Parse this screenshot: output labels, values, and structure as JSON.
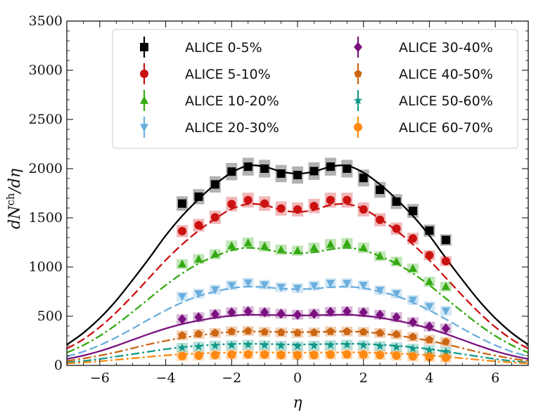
{
  "chart_data": {
    "type": "scatter",
    "xlabel": "η",
    "ylabel": "dN^ch/dη",
    "xlim": [
      -7,
      7
    ],
    "ylim": [
      0,
      3500
    ],
    "xticks": [
      -6,
      -4,
      -2,
      0,
      2,
      4,
      6
    ],
    "yticks": [
      0,
      500,
      1000,
      1500,
      2000,
      2500,
      3000,
      3500
    ],
    "xtick_labels": [
      "−6",
      "−4",
      "−2",
      "0",
      "2",
      "4",
      "6"
    ],
    "ytick_labels": [
      "0",
      "500",
      "1000",
      "1500",
      "2000",
      "2500",
      "3000",
      "3500"
    ],
    "grid": false,
    "legend_position": "top-center, 2 columns",
    "x": [
      -3.5,
      -3.0,
      -2.5,
      -2.0,
      -1.5,
      -1.0,
      -0.5,
      0.0,
      0.5,
      1.0,
      1.5,
      2.0,
      2.5,
      3.0,
      3.5,
      4.0,
      4.5
    ],
    "curve_x": [
      -7,
      -6.5,
      -6,
      -5.5,
      -5,
      -4.5,
      -4,
      -3.5,
      -3,
      -2.5,
      -2,
      -1.5,
      -1,
      -0.5,
      0,
      0.5,
      1,
      1.5,
      2,
      2.5,
      3,
      3.5,
      4,
      4.5,
      5,
      5.5,
      6,
      6.5,
      7
    ],
    "series": [
      {
        "name": "ALICE 0-5%",
        "color": "#000000",
        "marker": "square",
        "line_style": "solid",
        "data_x": [
          -3.5,
          -3.0,
          -2.5,
          -2.0,
          -1.5,
          -1.0,
          -0.5,
          0.0,
          0.5,
          1.0,
          1.5,
          2.0,
          2.5,
          3.0,
          3.5,
          4.0,
          4.5
        ],
        "values": [
          1645,
          1715,
          1840,
          1970,
          2020,
          2000,
          1950,
          1935,
          1975,
          2020,
          2000,
          1905,
          1785,
          1665,
          1570,
          1370,
          1275
        ],
        "curve": [
          210,
          330,
          480,
          660,
          870,
          1090,
          1320,
          1520,
          1690,
          1840,
          1960,
          2030,
          2020,
          1970,
          1950,
          1970,
          2020,
          2030,
          1960,
          1840,
          1690,
          1520,
          1320,
          1090,
          870,
          660,
          480,
          330,
          210
        ]
      },
      {
        "name": "ALICE 5-10%",
        "color": "#cc1111",
        "marker": "circle",
        "line_style": "dashed",
        "data_x": [
          -3.5,
          -3.0,
          -2.5,
          -2.0,
          -1.5,
          -1.0,
          -0.5,
          0.0,
          0.5,
          1.0,
          1.5,
          2.0,
          2.5,
          3.0,
          3.5,
          4.0,
          4.5
        ],
        "values": [
          1365,
          1425,
          1505,
          1640,
          1680,
          1645,
          1595,
          1585,
          1620,
          1680,
          1680,
          1585,
          1480,
          1390,
          1290,
          1120,
          1060
        ],
        "curve": [
          170,
          265,
          390,
          540,
          710,
          890,
          1070,
          1230,
          1370,
          1490,
          1590,
          1640,
          1630,
          1580,
          1560,
          1580,
          1630,
          1640,
          1590,
          1490,
          1370,
          1230,
          1070,
          890,
          710,
          540,
          390,
          265,
          170
        ]
      },
      {
        "name": "ALICE 10-20%",
        "color": "#33aa11",
        "marker": "triangle-up",
        "line_style": "dashdot",
        "data_x": [
          -3.5,
          -3.0,
          -2.5,
          -2.0,
          -1.5,
          -1.0,
          -0.5,
          0.0,
          0.5,
          1.0,
          1.5,
          2.0,
          2.5,
          3.0,
          3.5,
          4.0,
          4.5
        ],
        "values": [
          1030,
          1080,
          1130,
          1215,
          1245,
          1210,
          1175,
          1165,
          1195,
          1230,
          1240,
          1195,
          1110,
          1055,
          985,
          850,
          800
        ],
        "curve": [
          130,
          205,
          300,
          415,
          545,
          680,
          815,
          935,
          1035,
          1110,
          1170,
          1195,
          1180,
          1150,
          1140,
          1150,
          1180,
          1195,
          1170,
          1110,
          1035,
          935,
          815,
          680,
          545,
          415,
          300,
          205,
          130
        ]
      },
      {
        "name": "ALICE 20-30%",
        "color": "#6aaedd",
        "marker": "triangle-down",
        "line_style": "dashed",
        "data_x": [
          -3.5,
          -3.0,
          -2.5,
          -2.0,
          -1.5,
          -1.0,
          -0.5,
          0.0,
          0.5,
          1.0,
          1.5,
          2.0,
          2.5,
          3.0,
          3.5,
          4.0,
          4.5
        ],
        "values": [
          700,
          730,
          770,
          815,
          840,
          820,
          795,
          785,
          810,
          835,
          835,
          815,
          765,
          730,
          665,
          600,
          555
        ],
        "curve": [
          90,
          140,
          205,
          285,
          375,
          470,
          560,
          640,
          705,
          750,
          785,
          800,
          795,
          780,
          775,
          780,
          795,
          800,
          785,
          750,
          705,
          640,
          560,
          470,
          375,
          285,
          205,
          140,
          90
        ]
      },
      {
        "name": "ALICE 30-40%",
        "color": "#7a117e",
        "marker": "diamond",
        "line_style": "solid",
        "data_x": [
          -3.5,
          -3.0,
          -2.5,
          -2.0,
          -1.5,
          -1.0,
          -0.5,
          0.0,
          0.5,
          1.0,
          1.5,
          2.0,
          2.5,
          3.0,
          3.5,
          4.0,
          4.5
        ],
        "values": [
          470,
          490,
          520,
          540,
          550,
          540,
          525,
          515,
          525,
          545,
          550,
          540,
          515,
          490,
          440,
          395,
          375
        ],
        "curve": [
          65,
          100,
          145,
          200,
          260,
          320,
          375,
          420,
          455,
          485,
          505,
          515,
          513,
          510,
          508,
          510,
          513,
          515,
          505,
          485,
          455,
          420,
          375,
          320,
          260,
          200,
          145,
          100,
          65
        ]
      },
      {
        "name": "ALICE 40-50%",
        "color": "#cc6611",
        "marker": "pentagon",
        "line_style": "dashdot",
        "data_x": [
          -3.5,
          -3.0,
          -2.5,
          -2.0,
          -1.5,
          -1.0,
          -0.5,
          0.0,
          0.5,
          1.0,
          1.5,
          2.0,
          2.5,
          3.0,
          3.5,
          4.0,
          4.5
        ],
        "values": [
          305,
          320,
          330,
          345,
          350,
          340,
          335,
          330,
          335,
          345,
          345,
          340,
          330,
          315,
          290,
          260,
          240
        ],
        "curve": [
          45,
          70,
          100,
          135,
          175,
          215,
          250,
          280,
          305,
          325,
          340,
          345,
          343,
          340,
          338,
          340,
          343,
          345,
          340,
          325,
          305,
          280,
          250,
          215,
          175,
          135,
          100,
          70,
          45
        ]
      },
      {
        "name": "ALICE 50-60%",
        "color": "#119988",
        "marker": "star",
        "line_style": "dashdot",
        "data_x": [
          -3.5,
          -3.0,
          -2.5,
          -2.0,
          -1.5,
          -1.0,
          -0.5,
          0.0,
          0.5,
          1.0,
          1.5,
          2.0,
          2.5,
          3.0,
          3.5,
          4.0,
          4.5
        ],
        "values": [
          180,
          190,
          200,
          205,
          210,
          205,
          200,
          195,
          200,
          205,
          210,
          205,
          195,
          185,
          170,
          155,
          140
        ],
        "curve": [
          30,
          45,
          65,
          90,
          115,
          140,
          165,
          185,
          200,
          210,
          218,
          220,
          218,
          215,
          213,
          215,
          218,
          220,
          218,
          210,
          200,
          185,
          165,
          140,
          115,
          90,
          65,
          45,
          30
        ]
      },
      {
        "name": "ALICE 60-70%",
        "color": "#ff8811",
        "marker": "circle",
        "line_style": "dashdot",
        "data_x": [
          -3.5,
          -3.0,
          -2.5,
          -2.0,
          -1.5,
          -1.0,
          -0.5,
          0.0,
          0.5,
          1.0,
          1.5,
          2.0,
          2.5,
          3.0,
          3.5,
          4.0,
          4.5
        ],
        "values": [
          95,
          100,
          105,
          110,
          112,
          110,
          105,
          103,
          105,
          110,
          112,
          110,
          105,
          100,
          92,
          85,
          78
        ],
        "curve": [
          20,
          30,
          42,
          57,
          72,
          88,
          102,
          113,
          121,
          127,
          131,
          132,
          131,
          130,
          129,
          130,
          131,
          132,
          131,
          127,
          121,
          113,
          102,
          88,
          72,
          57,
          42,
          30,
          20
        ]
      }
    ]
  }
}
